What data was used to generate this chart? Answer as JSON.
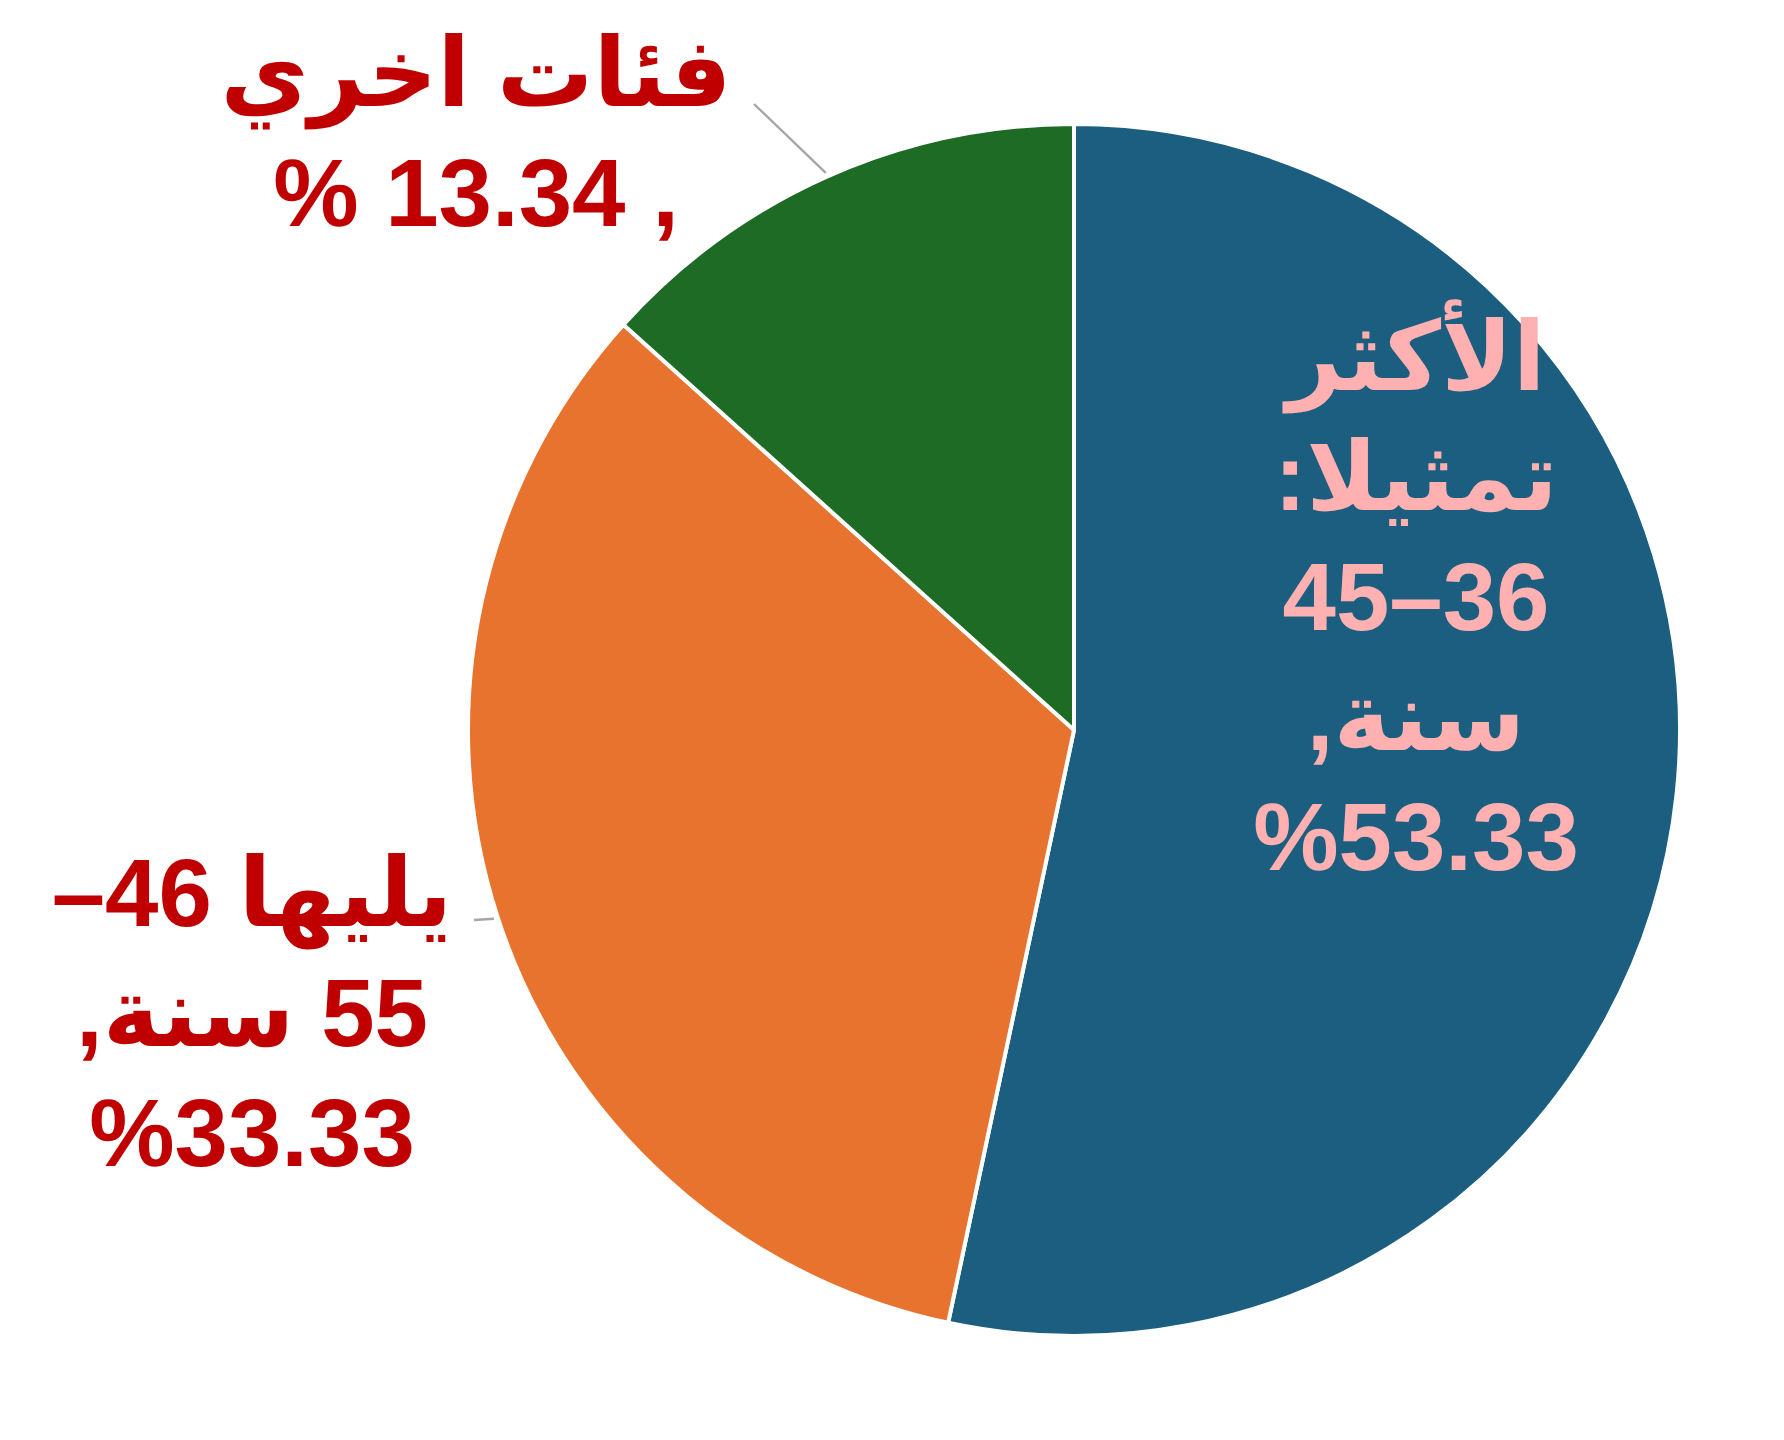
{
  "chart_data": {
    "type": "pie",
    "categories": [
      "الأكثر تمثيلا: 36–45 سنة, 53.33%",
      "يليها 46–55 سنة, 33.33%",
      "فئات اخري , 13.34 %"
    ],
    "values": [
      53.33,
      33.33,
      13.34
    ],
    "colors": [
      "#1b5e7f",
      "#e8732f",
      "#1d6b25"
    ]
  }
}
